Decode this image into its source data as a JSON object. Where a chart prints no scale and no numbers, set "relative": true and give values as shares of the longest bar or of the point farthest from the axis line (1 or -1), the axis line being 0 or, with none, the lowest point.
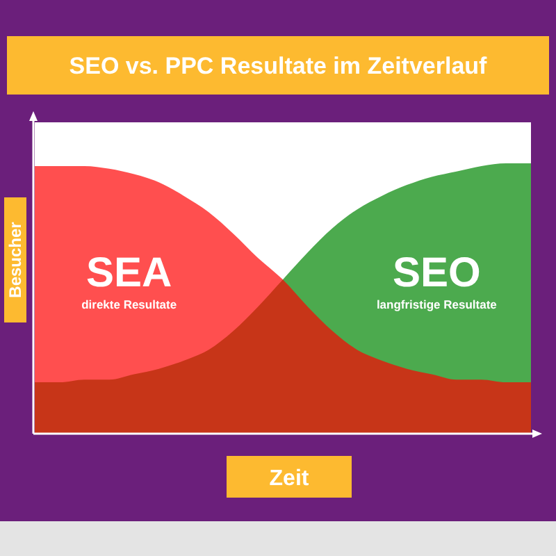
{
  "chart_data": {
    "type": "area",
    "title": "SEO vs. PPC Resultate im Zeitverlauf",
    "xlabel": "Zeit",
    "ylabel": "Besucher",
    "relative": true,
    "categories": [
      null,
      null,
      null,
      null,
      null,
      null,
      null,
      null,
      null,
      null,
      null,
      null,
      null,
      null,
      null,
      null,
      null,
      null,
      null,
      null,
      null
    ],
    "series": [
      {
        "name": "SEA",
        "color": "#ff0000",
        "values": [
          0.99,
          0.99,
          0.99,
          0.98,
          0.96,
          0.93,
          0.88,
          0.82,
          0.74,
          0.65,
          0.57,
          0.47,
          0.38,
          0.31,
          0.27,
          0.24,
          0.22,
          0.2,
          0.2,
          0.19,
          0.19
        ]
      },
      {
        "name": "SEO",
        "color": "#4caa4e",
        "values": [
          0.19,
          0.19,
          0.2,
          0.2,
          0.22,
          0.24,
          0.27,
          0.31,
          0.38,
          0.47,
          0.57,
          0.67,
          0.76,
          0.83,
          0.88,
          0.92,
          0.95,
          0.97,
          0.99,
          1.0,
          1.0
        ]
      }
    ],
    "annotations": [
      "direkte Resultate",
      "langfristige Resultate"
    ]
  }
}
